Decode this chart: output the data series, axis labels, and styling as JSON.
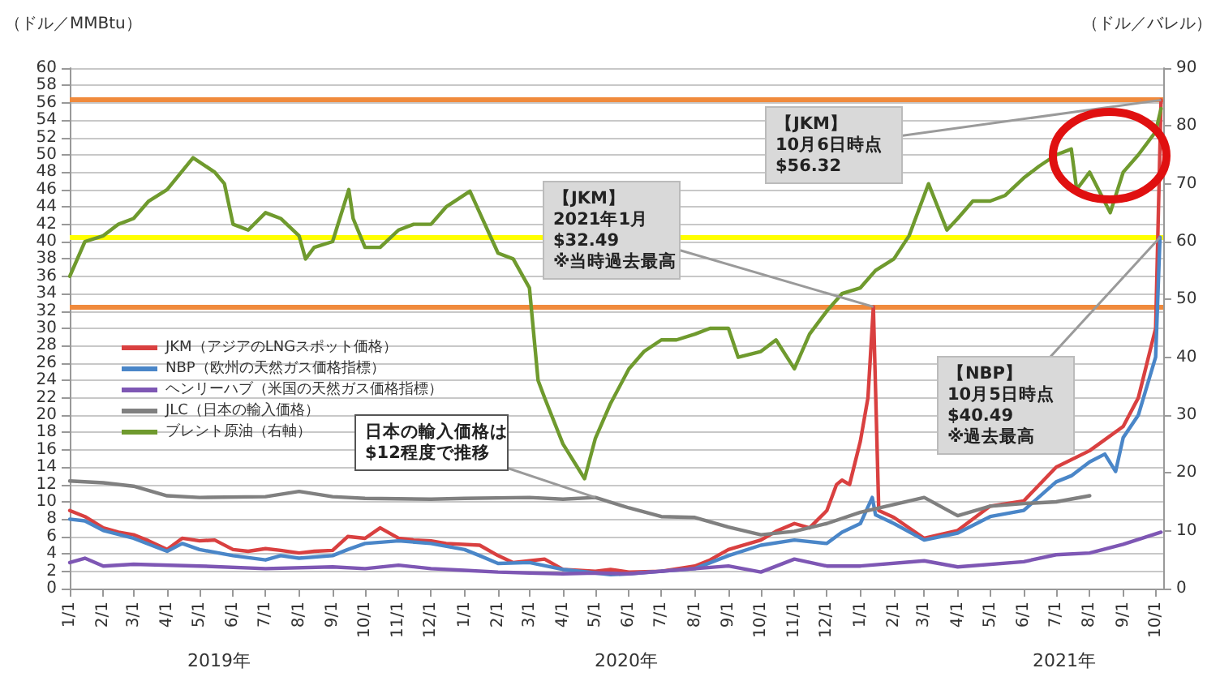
{
  "chart_data": {
    "type": "line",
    "ylabel": "（ドル／MMBtu）",
    "y2label": "（ドル／バレル）",
    "xlim": [
      "2019-01-01",
      "2021-10-08"
    ],
    "xticks": [
      {
        "value": "2019-01-01",
        "label": "1/1"
      },
      {
        "value": "2019-02-01",
        "label": "2/1"
      },
      {
        "value": "2019-03-01",
        "label": "3/1"
      },
      {
        "value": "2019-04-01",
        "label": "4/1"
      },
      {
        "value": "2019-05-01",
        "label": "5/1"
      },
      {
        "value": "2019-06-01",
        "label": "6/1"
      },
      {
        "value": "2019-07-01",
        "label": "7/1"
      },
      {
        "value": "2019-08-01",
        "label": "8/1"
      },
      {
        "value": "2019-09-01",
        "label": "9/1"
      },
      {
        "value": "2019-10-01",
        "label": "10/1"
      },
      {
        "value": "2019-11-01",
        "label": "11/1"
      },
      {
        "value": "2019-12-01",
        "label": "12/1"
      },
      {
        "value": "2020-01-01",
        "label": "1/1"
      },
      {
        "value": "2020-02-01",
        "label": "2/1"
      },
      {
        "value": "2020-03-01",
        "label": "3/1"
      },
      {
        "value": "2020-04-01",
        "label": "4/1"
      },
      {
        "value": "2020-05-01",
        "label": "5/1"
      },
      {
        "value": "2020-06-01",
        "label": "6/1"
      },
      {
        "value": "2020-07-01",
        "label": "7/1"
      },
      {
        "value": "2020-08-01",
        "label": "8/1"
      },
      {
        "value": "2020-09-01",
        "label": "9/1"
      },
      {
        "value": "2020-10-01",
        "label": "10/1"
      },
      {
        "value": "2020-11-01",
        "label": "11/1"
      },
      {
        "value": "2020-12-01",
        "label": "12/1"
      },
      {
        "value": "2021-01-01",
        "label": "1/1"
      },
      {
        "value": "2021-02-01",
        "label": "2/1"
      },
      {
        "value": "2021-03-01",
        "label": "3/1"
      },
      {
        "value": "2021-04-01",
        "label": "4/1"
      },
      {
        "value": "2021-05-01",
        "label": "5/1"
      },
      {
        "value": "2021-06-01",
        "label": "6/1"
      },
      {
        "value": "2021-07-01",
        "label": "7/1"
      },
      {
        "value": "2021-08-01",
        "label": "8/1"
      },
      {
        "value": "2021-09-01",
        "label": "9/1"
      },
      {
        "value": "2021-10-01",
        "label": "10/1"
      }
    ],
    "ylim": [
      0,
      60
    ],
    "yticks": [
      0,
      2,
      4,
      6,
      8,
      10,
      12,
      14,
      16,
      18,
      20,
      22,
      24,
      26,
      28,
      30,
      32,
      34,
      36,
      38,
      40,
      42,
      44,
      46,
      48,
      50,
      52,
      54,
      56,
      58,
      60
    ],
    "y2lim": [
      0,
      90
    ],
    "y2ticks": [
      0,
      10,
      20,
      30,
      40,
      50,
      60,
      70,
      80,
      90
    ],
    "grid": "y",
    "legend": "left",
    "marker": "none",
    "line_style": "solid",
    "series": [
      {
        "name": "JKM（アジアのLNGスポット価格）",
        "color": "#d94040",
        "x": [
          "2019-01-01",
          "2019-01-15",
          "2019-02-01",
          "2019-02-15",
          "2019-03-01",
          "2019-03-15",
          "2019-04-01",
          "2019-04-15",
          "2019-05-01",
          "2019-05-15",
          "2019-06-01",
          "2019-06-15",
          "2019-07-01",
          "2019-07-15",
          "2019-08-01",
          "2019-08-15",
          "2019-09-01",
          "2019-09-15",
          "2019-10-01",
          "2019-10-15",
          "2019-11-01",
          "2019-11-15",
          "2019-12-01",
          "2019-12-15",
          "2020-01-15",
          "2020-02-01",
          "2020-02-15",
          "2020-03-01",
          "2020-03-15",
          "2020-04-01",
          "2020-04-15",
          "2020-05-01",
          "2020-05-15",
          "2020-06-01",
          "2020-07-01",
          "2020-08-01",
          "2020-08-15",
          "2020-09-01",
          "2020-10-01",
          "2020-10-15",
          "2020-11-01",
          "2020-11-15",
          "2020-12-01",
          "2020-12-10",
          "2020-12-15",
          "2020-12-22",
          "2021-01-01",
          "2021-01-08",
          "2021-01-13",
          "2021-01-18",
          "2021-02-01",
          "2021-03-01",
          "2021-04-01",
          "2021-05-01",
          "2021-06-01",
          "2021-07-01",
          "2021-08-01",
          "2021-09-01",
          "2021-09-15",
          "2021-10-01",
          "2021-10-06"
        ],
        "values": [
          9,
          8.3,
          7,
          6.5,
          6.2,
          5.5,
          4.5,
          5.8,
          5.5,
          5.6,
          4.5,
          4.3,
          4.6,
          4.4,
          4.1,
          4.3,
          4.4,
          6,
          5.8,
          7,
          5.8,
          5.6,
          5.5,
          5.2,
          5,
          3.8,
          3,
          3.2,
          3.4,
          2.2,
          2.1,
          2,
          2.2,
          1.9,
          2,
          2.6,
          3.3,
          4.5,
          5.6,
          6.6,
          7.5,
          7,
          9,
          12,
          12.5,
          12,
          17,
          22,
          32.49,
          9,
          8.2,
          5.8,
          6.7,
          9.5,
          10.1,
          14,
          15.9,
          18.7,
          22,
          30,
          56.32
        ]
      },
      {
        "name": "NBP（欧州の天然ガス価格指標）",
        "color": "#4a86c8",
        "x": [
          "2019-01-01",
          "2019-01-15",
          "2019-02-01",
          "2019-03-01",
          "2019-04-01",
          "2019-04-15",
          "2019-05-01",
          "2019-06-01",
          "2019-07-01",
          "2019-07-15",
          "2019-08-01",
          "2019-09-01",
          "2019-09-15",
          "2019-10-01",
          "2019-11-01",
          "2019-12-01",
          "2020-01-01",
          "2020-01-15",
          "2020-02-01",
          "2020-03-01",
          "2020-04-01",
          "2020-05-01",
          "2020-05-15",
          "2020-06-01",
          "2020-07-01",
          "2020-08-01",
          "2020-09-01",
          "2020-10-01",
          "2020-11-01",
          "2020-12-01",
          "2020-12-15",
          "2021-01-01",
          "2021-01-12",
          "2021-01-15",
          "2021-02-01",
          "2021-03-01",
          "2021-04-01",
          "2021-05-01",
          "2021-06-01",
          "2021-07-01",
          "2021-07-15",
          "2021-08-01",
          "2021-08-15",
          "2021-08-25",
          "2021-09-01",
          "2021-09-15",
          "2021-10-01",
          "2021-10-05"
        ],
        "values": [
          8,
          7.8,
          6.7,
          5.8,
          4.3,
          5.2,
          4.5,
          3.8,
          3.3,
          3.8,
          3.5,
          3.8,
          4.5,
          5.2,
          5.5,
          5.2,
          4.5,
          3.8,
          2.9,
          3,
          2.2,
          1.8,
          1.6,
          1.7,
          2,
          2.3,
          3.8,
          5,
          5.6,
          5.2,
          6.5,
          7.5,
          10.5,
          8.5,
          7.5,
          5.6,
          6.4,
          8.3,
          9,
          12.3,
          13,
          14.6,
          15.5,
          13.5,
          17.4,
          20,
          26.7,
          40.49
        ]
      },
      {
        "name": "ヘンリーハブ（米国の天然ガス価格指標）",
        "color": "#7e57b4",
        "x": [
          "2019-01-01",
          "2019-01-15",
          "2019-02-01",
          "2019-03-01",
          "2019-05-01",
          "2019-07-01",
          "2019-09-01",
          "2019-10-01",
          "2019-11-01",
          "2019-12-01",
          "2020-01-01",
          "2020-02-01",
          "2020-03-01",
          "2020-04-01",
          "2020-05-01",
          "2020-06-01",
          "2020-09-01",
          "2020-10-01",
          "2020-11-01",
          "2020-12-01",
          "2021-01-01",
          "2021-03-01",
          "2021-04-01",
          "2021-06-01",
          "2021-07-01",
          "2021-08-01",
          "2021-09-01",
          "2021-10-06"
        ],
        "values": [
          3,
          3.5,
          2.6,
          2.8,
          2.6,
          2.3,
          2.5,
          2.3,
          2.7,
          2.3,
          2.1,
          1.9,
          1.8,
          1.7,
          1.8,
          1.7,
          2.6,
          1.9,
          3.4,
          2.6,
          2.6,
          3.2,
          2.5,
          3.1,
          3.9,
          4.1,
          5.1,
          6.5
        ]
      },
      {
        "name": "JLC（日本の輸入価格）",
        "color": "#808080",
        "x": [
          "2019-01-01",
          "2019-02-01",
          "2019-03-01",
          "2019-04-01",
          "2019-05-01",
          "2019-07-01",
          "2019-08-01",
          "2019-09-01",
          "2019-10-01",
          "2019-12-01",
          "2020-01-01",
          "2020-03-01",
          "2020-04-01",
          "2020-05-01",
          "2020-06-01",
          "2020-07-01",
          "2020-08-01",
          "2020-09-01",
          "2020-10-01",
          "2020-11-01",
          "2020-12-01",
          "2021-01-01",
          "2021-03-01",
          "2021-04-01",
          "2021-05-01",
          "2021-06-01",
          "2021-07-01",
          "2021-08-01"
        ],
        "values": [
          12.4,
          12.2,
          11.8,
          10.7,
          10.5,
          10.6,
          11.2,
          10.6,
          10.4,
          10.3,
          10.4,
          10.5,
          10.3,
          10.5,
          9.3,
          8.3,
          8.2,
          7.1,
          6.2,
          6.6,
          7.5,
          8.8,
          10.5,
          8.4,
          9.5,
          9.8,
          10,
          10.7
        ]
      },
      {
        "name": "ブレント原油（右軸）",
        "color": "#6f9a2e",
        "axis": "y2",
        "x": [
          "2019-01-01",
          "2019-01-15",
          "2019-02-01",
          "2019-02-15",
          "2019-03-01",
          "2019-03-15",
          "2019-04-01",
          "2019-04-25",
          "2019-05-15",
          "2019-05-24",
          "2019-06-01",
          "2019-06-15",
          "2019-07-01",
          "2019-07-15",
          "2019-08-01",
          "2019-08-07",
          "2019-08-15",
          "2019-09-01",
          "2019-09-16",
          "2019-09-20",
          "2019-10-01",
          "2019-10-15",
          "2019-11-01",
          "2019-11-15",
          "2019-12-01",
          "2019-12-15",
          "2020-01-06",
          "2020-01-15",
          "2020-02-01",
          "2020-02-15",
          "2020-03-01",
          "2020-03-09",
          "2020-03-15",
          "2020-04-01",
          "2020-04-21",
          "2020-05-01",
          "2020-05-15",
          "2020-06-01",
          "2020-06-15",
          "2020-07-01",
          "2020-07-15",
          "2020-08-01",
          "2020-08-15",
          "2020-09-01",
          "2020-09-10",
          "2020-10-01",
          "2020-10-15",
          "2020-11-01",
          "2020-11-15",
          "2020-12-01",
          "2020-12-15",
          "2021-01-01",
          "2021-01-15",
          "2021-02-01",
          "2021-02-15",
          "2021-03-05",
          "2021-03-22",
          "2021-04-01",
          "2021-04-15",
          "2021-05-01",
          "2021-05-15",
          "2021-06-01",
          "2021-06-15",
          "2021-07-01",
          "2021-07-15",
          "2021-07-20",
          "2021-08-01",
          "2021-08-20",
          "2021-09-01",
          "2021-09-15",
          "2021-10-01",
          "2021-10-06"
        ],
        "values": [
          54,
          60,
          61,
          63,
          64,
          67,
          69,
          74.5,
          72,
          70,
          63,
          62,
          65,
          64,
          61,
          57,
          59,
          60,
          69,
          64,
          59,
          59,
          62,
          63,
          63,
          66,
          68.7,
          65,
          58,
          57,
          52,
          36,
          33,
          25,
          19,
          26,
          32,
          38,
          41,
          43,
          43,
          44,
          45,
          45,
          40,
          41,
          43,
          38,
          44,
          48,
          51,
          52,
          55,
          57,
          61,
          70,
          62,
          64,
          67,
          67,
          68,
          71,
          73,
          75,
          76,
          69,
          72,
          65,
          72,
          75,
          79,
          83
        ]
      }
    ],
    "ref_lines": [
      {
        "axis": "y",
        "value": 56.32,
        "color": "#f08a3c"
      },
      {
        "axis": "y",
        "value": 32.49,
        "color": "#f08a3c"
      },
      {
        "axis": "y",
        "value": 40.49,
        "color": "#ffff00"
      }
    ],
    "annotations": [
      {
        "text": "【JKM】\n2021年1月\n$32.49\n※当時過去最高",
        "x": "2021-01-13",
        "y": 32.49
      },
      {
        "text": "【JKM】\n10月6日時点\n$56.32",
        "x": "2021-10-06",
        "y": 56.32
      },
      {
        "text": "【NBP】\n10月5日時点\n$40.49\n※過去最高",
        "x": "2021-10-05",
        "y": 40.49
      },
      {
        "text": "日本の輸入価格は\n$12程度で推移",
        "x": "2020-05-01",
        "y": 10.5
      },
      "2019年",
      "2020年",
      "2021年"
    ]
  }
}
